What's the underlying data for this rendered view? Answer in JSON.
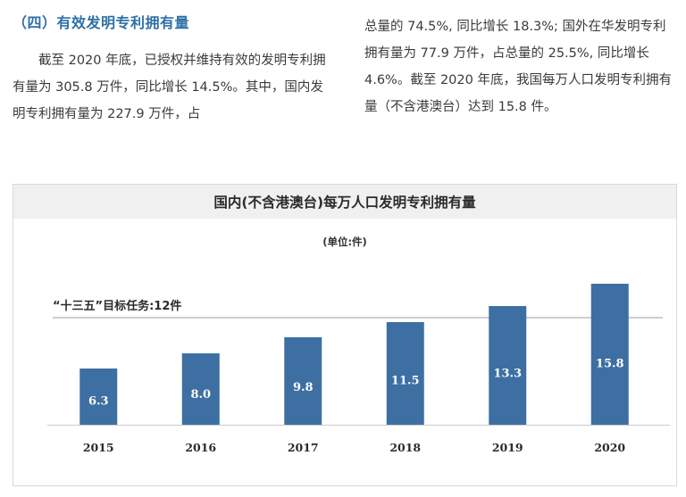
{
  "section": {
    "title": "（四）有效发明专利拥有量",
    "para_left": "截至 2020 年底，已授权并维持有效的发明专利拥有量为 305.8 万件，同比增长 14.5%。其中，国内发明专利拥有量为 227.9 万件，占",
    "para_right": "总量的 74.5%, 同比增长 18.3%; 国外在华发明专利拥有量为 77.9 万件，占总量的 25.5%, 同比增长 4.6%。截至 2020 年底，我国每万人口发明专利拥有量（不含港澳台）达到 15.8 件。"
  },
  "chart_data": {
    "type": "bar",
    "title": "国内(不含港澳台)每万人口发明专利拥有量",
    "unit": "(单位:件)",
    "categories": [
      "2015",
      "2016",
      "2017",
      "2018",
      "2019",
      "2020"
    ],
    "values": [
      6.3,
      8.0,
      9.8,
      11.5,
      13.3,
      15.8
    ],
    "value_labels": [
      "6.3",
      "8.0",
      "9.8",
      "11.5",
      "13.3",
      "15.8"
    ],
    "ylim": [
      0,
      16.5
    ],
    "target_line": {
      "value": 12,
      "label": "“十三五”目标任务:12件"
    },
    "colors": {
      "bar": "#3d6fa3",
      "bar_label": "#ffffff",
      "target_line": "#bdbdbd",
      "axis": "#cccccc"
    },
    "grid": false,
    "legend": "none"
  }
}
